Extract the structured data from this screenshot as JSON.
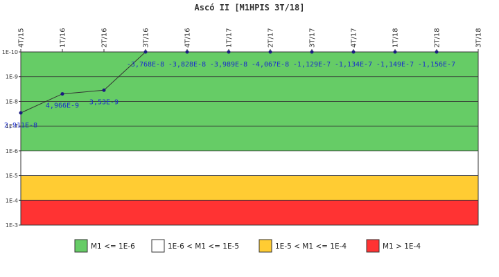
{
  "chart_data": {
    "type": "line",
    "title": "Ascó II [M1HPIS 3T/18]",
    "categories": [
      "4T/15",
      "1T/16",
      "2T/16",
      "3T/16",
      "4T/16",
      "1T/17",
      "2T/17",
      "3T/17",
      "4T/17",
      "1T/18",
      "2T/18",
      "3T/18"
    ],
    "y_scale": "log",
    "ylim": [
      0.001,
      1e-10
    ],
    "y_inverted": true,
    "y_ticks": [
      {
        "value": 1e-10,
        "label": "1E-10"
      },
      {
        "value": 1e-09,
        "label": "1E-9"
      },
      {
        "value": 1e-08,
        "label": "1E-8"
      },
      {
        "value": 1e-07,
        "label": "1E-7"
      },
      {
        "value": 1e-06,
        "label": "1E-6"
      },
      {
        "value": 1e-05,
        "label": "1E-5"
      },
      {
        "value": 0.0001,
        "label": "1E-4"
      },
      {
        "value": 0.001,
        "label": "1E-3"
      }
    ],
    "series": [
      {
        "values": [
          2.911e-08,
          4.966e-09,
          3.53e-09,
          -3.768e-08,
          -3.828e-08,
          -3.989e-08,
          -4.067e-08,
          -1.129e-07,
          -1.134e-07,
          -1.149e-07,
          -1.156e-07,
          null
        ],
        "labels": [
          "2,911E-8",
          "4,966E-9",
          "3,53E-9",
          "-3,768E-8",
          "-3,828E-8",
          "-3,989E-8",
          "-4,067E-8",
          "-1,129E-7",
          "-1,134E-7",
          "-1,149E-7",
          "-1,156E-7",
          ""
        ],
        "color": "#1a1a80"
      }
    ],
    "bands": [
      {
        "from": 1e-10,
        "to": 1e-06,
        "color": "#66cc66",
        "legend": "M1 <= 1E-6"
      },
      {
        "from": 1e-06,
        "to": 1e-05,
        "color": "#ffffff",
        "legend": "1E-6 < M1 <= 1E-5"
      },
      {
        "from": 1e-05,
        "to": 0.0001,
        "color": "#ffcc33",
        "legend": "1E-5 < M1 <= 1E-4"
      },
      {
        "from": 0.0001,
        "to": 0.001,
        "color": "#ff3333",
        "legend": "M1 > 1E-4"
      }
    ],
    "legend_position": "bottom",
    "label_color": "#1a2bcc"
  }
}
